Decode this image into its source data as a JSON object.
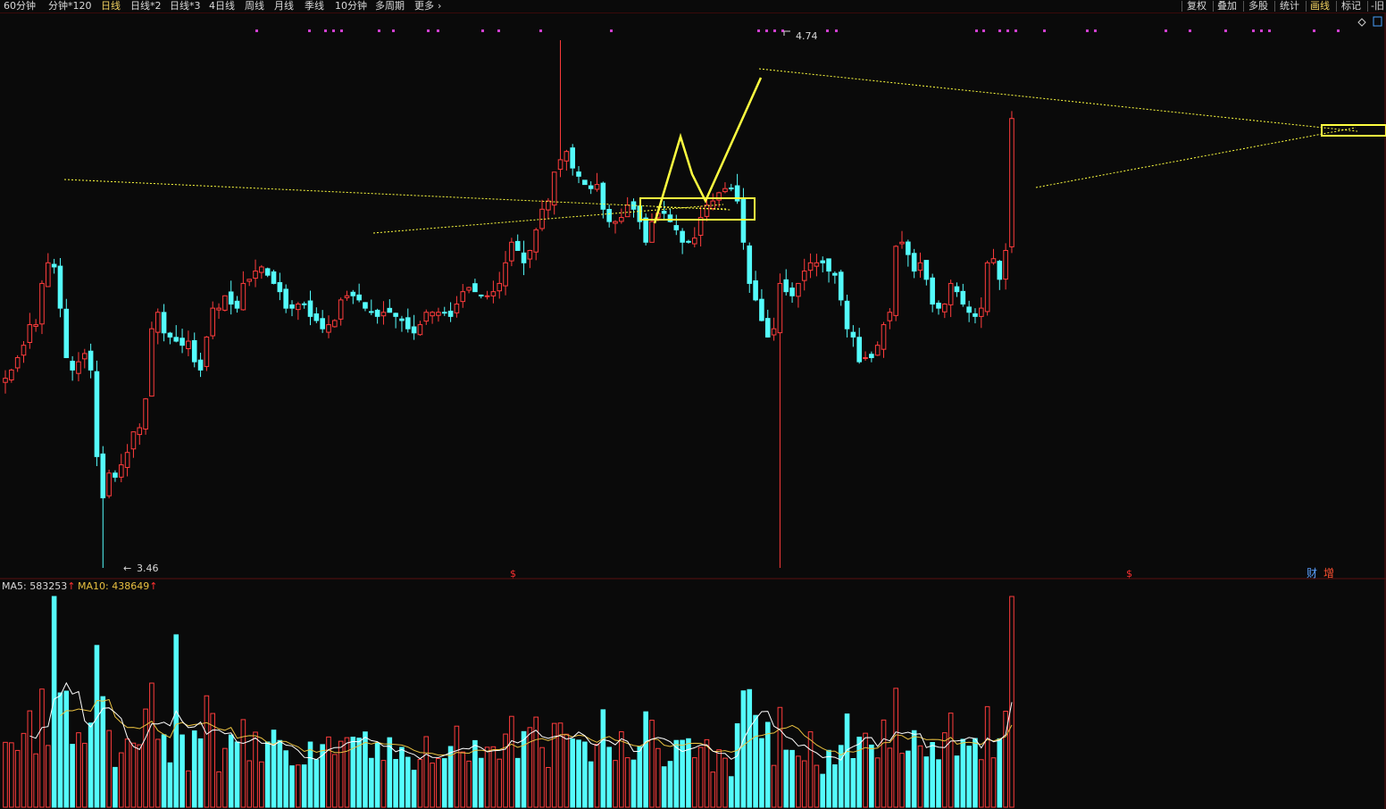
{
  "toolbar": {
    "left_tabs": [
      {
        "label": "60分钟",
        "active": false
      },
      {
        "label": "分钟*120",
        "active": false
      },
      {
        "label": "日线",
        "active": true
      },
      {
        "label": "日线*2",
        "active": false
      },
      {
        "label": "日线*3",
        "active": false
      },
      {
        "label": "4日线",
        "active": false
      },
      {
        "label": "周线",
        "active": false
      },
      {
        "label": "月线",
        "active": false
      },
      {
        "label": "季线",
        "active": false
      },
      {
        "label": "10分钟",
        "active": false
      },
      {
        "label": "多周期",
        "active": false
      },
      {
        "label": "更多",
        "active": false
      }
    ],
    "more_icon": "chevron-right-icon",
    "right_tabs": [
      {
        "label": "复权",
        "active": false
      },
      {
        "label": "叠加",
        "active": false
      },
      {
        "label": "多股",
        "active": false
      },
      {
        "label": "统计",
        "active": false
      },
      {
        "label": "画线",
        "active": true
      },
      {
        "label": "标记",
        "active": false
      },
      {
        "label": "-旧",
        "active": false
      }
    ]
  },
  "price_panel": {
    "high_label": "4.74",
    "low_label": "3.46",
    "markers": [
      {
        "text": "$",
        "color": "#ff3030"
      },
      {
        "text": "$",
        "color": "#ff3030"
      },
      {
        "text": "财",
        "color": "#5aa0ff"
      },
      {
        "text": "增",
        "color": "#ff5030"
      }
    ]
  },
  "volume_panel": {
    "ma5_label": "MA5: 583253",
    "ma10_label": "MA10: 438649",
    "ma5_color": "#ffffff",
    "ma10_color": "#e8c040"
  },
  "colors": {
    "up": "#ff3c3c",
    "down": "#54fcfc",
    "drawing": "#ffff40",
    "flag": "#d040d0"
  },
  "chart_data": {
    "type": "candlestick",
    "ylim": [
      3.46,
      4.74
    ],
    "high": 4.74,
    "low": 3.46,
    "closes": [
      3.92,
      3.94,
      3.97,
      4.0,
      4.05,
      4.05,
      4.15,
      4.2,
      4.19,
      4.09,
      3.97,
      3.94,
      3.96,
      3.98,
      3.94,
      3.73,
      3.63,
      3.69,
      3.68,
      3.71,
      3.74,
      3.79,
      3.8,
      3.87,
      4.04,
      4.08,
      4.03,
      4.02,
      4.01,
      4.0,
      4.01,
      3.96,
      3.94,
      4.02,
      4.09,
      4.09,
      4.12,
      4.1,
      4.09,
      4.15,
      4.16,
      4.18,
      4.19,
      4.17,
      4.15,
      4.13,
      4.09,
      4.09,
      4.1,
      4.1,
      4.07,
      4.06,
      4.04,
      4.05,
      4.06,
      4.11,
      4.12,
      4.12,
      4.11,
      4.09,
      4.08,
      4.07,
      4.08,
      4.08,
      4.07,
      4.06,
      4.04,
      4.03,
      4.05,
      4.08,
      4.08,
      4.08,
      4.08,
      4.07,
      4.1,
      4.13,
      4.14,
      4.13,
      4.12,
      4.12,
      4.13,
      4.15,
      4.2,
      4.25,
      4.23,
      4.2,
      4.23,
      4.28,
      4.33,
      4.35,
      4.42,
      4.45,
      4.47,
      4.43,
      4.41,
      4.39,
      4.38,
      4.39,
      4.33,
      4.3,
      4.3,
      4.31,
      4.34,
      4.33,
      4.3,
      4.25,
      4.3,
      4.32,
      4.32,
      4.3,
      4.28,
      4.25,
      4.25,
      4.26,
      4.31,
      4.34,
      4.35,
      4.37,
      4.38,
      4.38,
      4.35,
      4.25,
      4.15,
      4.11,
      4.06,
      4.02,
      4.04,
      4.15,
      4.13,
      4.12,
      4.15,
      4.18,
      4.2,
      4.2,
      4.2,
      4.18,
      4.17,
      4.11,
      4.04,
      4.02,
      3.96,
      3.97,
      3.97,
      4.0,
      4.05,
      4.08,
      4.24,
      4.25,
      4.22,
      4.18,
      4.2,
      4.16,
      4.1,
      4.09,
      4.1,
      4.15,
      4.13,
      4.1,
      4.08,
      4.07,
      4.09,
      4.2,
      4.21,
      4.16,
      4.23,
      4.55
    ],
    "volume_ylim": [
      0,
      1100000
    ],
    "volume_ma5_last": 583253,
    "volume_ma10_last": 438649
  }
}
